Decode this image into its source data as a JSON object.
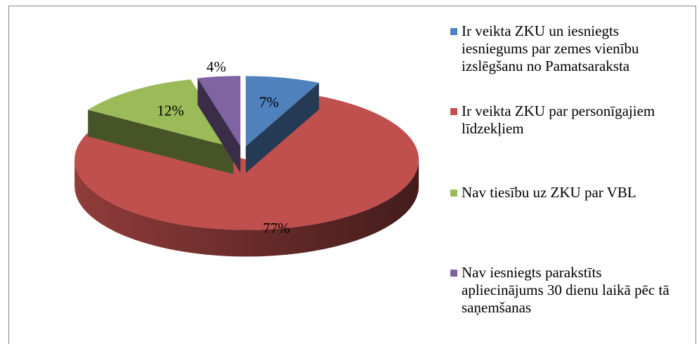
{
  "chart_data": {
    "type": "pie3d",
    "categories": [
      "Ir veikta ZKU un iesniegts iesniegums par zemes vienību izslēgšanu no Pamatsaraksta",
      "Ir veikta ZKU par personīgajiem  līdzekļiem",
      "Nav tiesību uz ZKU par VBL",
      "Nav iesniegts parakstīts apliecinājums  30 dienu laikā pēc tā saņemšanas"
    ],
    "values": [
      7,
      77,
      12,
      4
    ],
    "value_labels": [
      "7%",
      "77%",
      "12%",
      "4%"
    ],
    "colors": [
      "#4f81bd",
      "#c0504d",
      "#9bbb59",
      "#8064a2"
    ],
    "legend": "right"
  }
}
